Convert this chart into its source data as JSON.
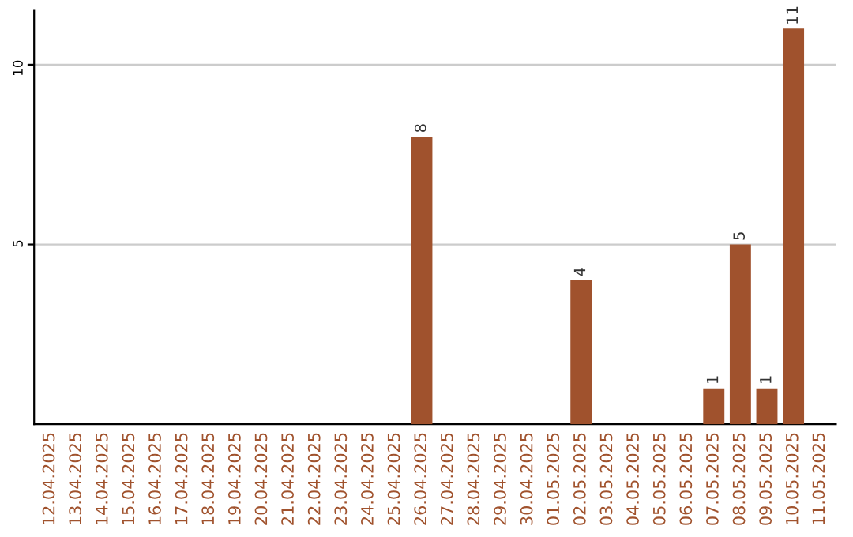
{
  "chart_data": {
    "type": "bar",
    "categories": [
      "12.04.2025",
      "13.04.2025",
      "14.04.2025",
      "15.04.2025",
      "16.04.2025",
      "17.04.2025",
      "18.04.2025",
      "19.04.2025",
      "20.04.2025",
      "21.04.2025",
      "22.04.2025",
      "23.04.2025",
      "24.04.2025",
      "25.04.2025",
      "26.04.2025",
      "27.04.2025",
      "28.04.2025",
      "29.04.2025",
      "30.04.2025",
      "01.05.2025",
      "02.05.2025",
      "03.05.2025",
      "04.05.2025",
      "05.05.2025",
      "06.05.2025",
      "07.05.2025",
      "08.05.2025",
      "09.05.2025",
      "10.05.2025",
      "11.05.2025"
    ],
    "values": [
      null,
      null,
      null,
      null,
      null,
      null,
      null,
      null,
      null,
      null,
      null,
      null,
      null,
      null,
      8,
      null,
      null,
      null,
      null,
      null,
      4,
      null,
      null,
      null,
      null,
      1,
      5,
      1,
      11,
      null
    ],
    "color": "#a0522d",
    "ylim": [
      0,
      11.5
    ],
    "yticks": [
      5,
      10
    ],
    "grid": "y",
    "data_labels": true
  }
}
